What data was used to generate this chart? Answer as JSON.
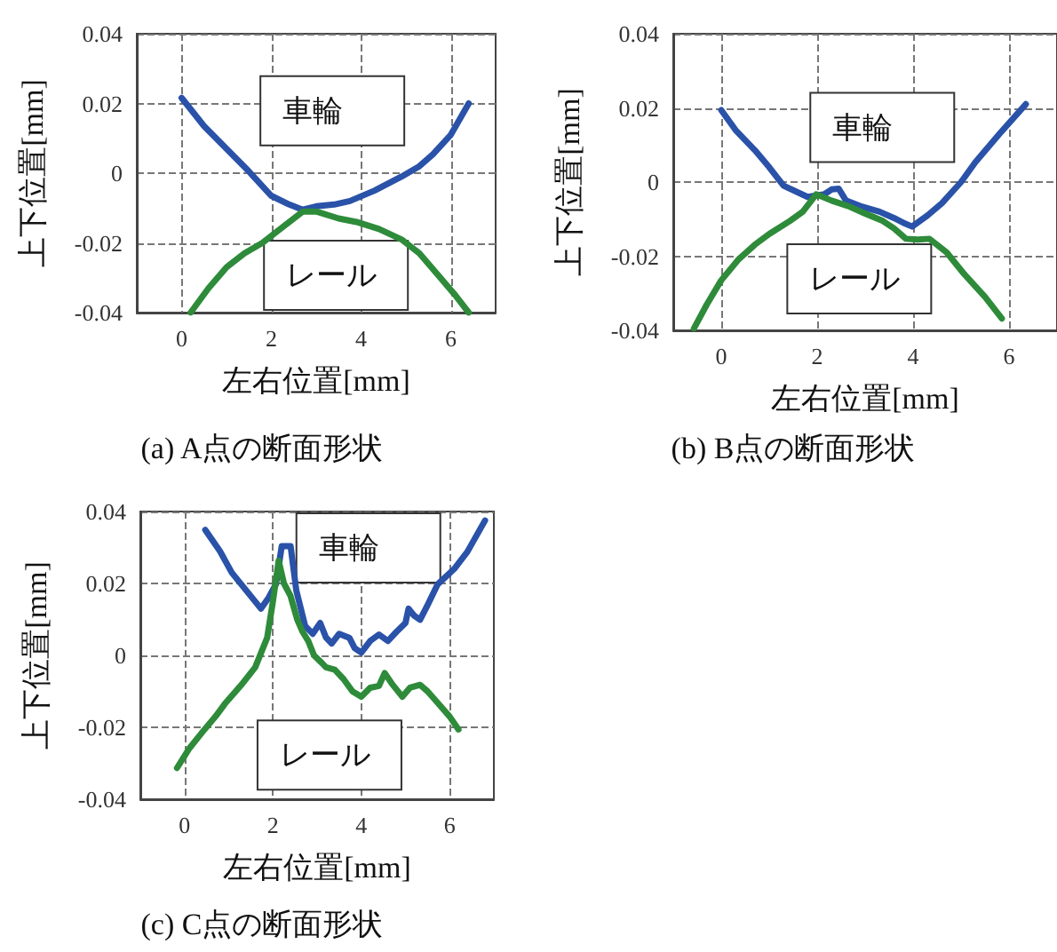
{
  "chart_data": [
    {
      "type": "line",
      "title": "(a) A点の断面形状",
      "xlabel": "左右位置[mm]",
      "ylabel": "上下位置[mm]",
      "xlim": [
        -1,
        7
      ],
      "ylim": [
        -0.04,
        0.04
      ],
      "xticks": [
        0,
        2,
        4,
        6
      ],
      "yticks": [
        -0.04,
        -0.02,
        0,
        0.02,
        0.04
      ],
      "grid": true,
      "marker": "none",
      "line_style": "solid",
      "series": [
        {
          "name": "車輪",
          "color": "#2a52a8",
          "x": [
            0.0,
            0.5,
            1.0,
            1.5,
            2.0,
            2.4,
            2.7,
            3.0,
            3.4,
            3.75,
            4.3,
            4.9,
            5.3,
            5.6,
            6.0,
            6.4
          ],
          "values": [
            0.0216,
            0.0135,
            0.007,
            0.0005,
            -0.0065,
            -0.009,
            -0.0105,
            -0.0095,
            -0.009,
            -0.008,
            -0.005,
            -0.001,
            0.002,
            0.0054,
            0.011,
            0.02
          ]
        },
        {
          "name": "レール",
          "color": "#2e8b3a",
          "x": [
            0.2,
            0.6,
            1.0,
            1.4,
            1.8,
            2.2,
            2.7,
            3.0,
            3.5,
            3.9,
            4.4,
            4.9,
            5.3,
            5.7,
            6.1,
            6.4
          ],
          "values": [
            -0.04,
            -0.033,
            -0.027,
            -0.023,
            -0.02,
            -0.016,
            -0.011,
            -0.011,
            -0.013,
            -0.014,
            -0.016,
            -0.019,
            -0.023,
            -0.029,
            -0.035,
            -0.04
          ]
        }
      ]
    },
    {
      "type": "line",
      "title": "(b) B点の断面形状",
      "xlabel": "左右位置[mm]",
      "ylabel": "上下位置[mm]",
      "xlim": [
        -1,
        7
      ],
      "ylim": [
        -0.04,
        0.04
      ],
      "xticks": [
        0,
        2,
        4,
        6
      ],
      "yticks": [
        -0.04,
        -0.02,
        0,
        0.02,
        0.04
      ],
      "grid": true,
      "marker": "none",
      "line_style": "solid",
      "series": [
        {
          "name": "車輪",
          "color": "#2a52a8",
          "x": [
            0.0,
            0.3,
            0.7,
            1.0,
            1.3,
            1.8,
            2.15,
            2.3,
            2.45,
            2.6,
            2.9,
            3.3,
            3.6,
            3.8,
            3.98,
            4.3,
            4.6,
            5.0,
            5.3,
            5.8,
            6.35
          ],
          "values": [
            0.0194,
            0.014,
            0.0086,
            0.004,
            -0.001,
            -0.004,
            -0.0033,
            -0.002,
            -0.0018,
            -0.005,
            -0.0065,
            -0.008,
            -0.0097,
            -0.011,
            -0.012,
            -0.009,
            -0.0057,
            0.0,
            0.0054,
            0.013,
            0.021
          ]
        },
        {
          "name": "レール",
          "color": "#2e8b3a",
          "x": [
            -0.57,
            -0.3,
            0.0,
            0.35,
            0.7,
            1.0,
            1.43,
            1.7,
            1.98,
            2.3,
            2.65,
            3.0,
            3.37,
            3.6,
            3.85,
            4.1,
            4.34,
            4.7,
            5.07,
            5.5,
            5.85
          ],
          "values": [
            -0.0395,
            -0.033,
            -0.0265,
            -0.021,
            -0.0169,
            -0.014,
            -0.0105,
            -0.008,
            -0.0033,
            -0.005,
            -0.0065,
            -0.0085,
            -0.0105,
            -0.0125,
            -0.0153,
            -0.0155,
            -0.0153,
            -0.019,
            -0.0249,
            -0.031,
            -0.0368
          ]
        }
      ]
    },
    {
      "type": "line",
      "title": "(c) C点の断面形状",
      "xlabel": "左右位置[mm]",
      "ylabel": "上下位置[mm]",
      "xlim": [
        -1,
        7
      ],
      "ylim": [
        -0.04,
        0.04
      ],
      "xticks": [
        0,
        2,
        4,
        6
      ],
      "yticks": [
        -0.04,
        -0.02,
        0,
        0.02,
        0.04
      ],
      "grid": true,
      "marker": "none",
      "line_style": "solid",
      "series": [
        {
          "name": "車輪",
          "color": "#2a52a8",
          "x": [
            0.47,
            0.8,
            1.07,
            1.4,
            1.73,
            1.9,
            2.07,
            2.2,
            2.3,
            2.4,
            2.53,
            2.73,
            2.9,
            3.07,
            3.2,
            3.33,
            3.5,
            3.73,
            3.85,
            4.0,
            4.2,
            4.4,
            4.6,
            4.8,
            5.0,
            5.07,
            5.2,
            5.33,
            5.5,
            5.73,
            6.1,
            6.4,
            6.8
          ],
          "values": [
            0.0349,
            0.029,
            0.023,
            0.018,
            0.013,
            0.016,
            0.0198,
            0.0304,
            0.0304,
            0.0304,
            0.018,
            0.0082,
            0.006,
            0.009,
            0.005,
            0.0033,
            0.006,
            0.0049,
            0.002,
            0.0008,
            0.004,
            0.0058,
            0.004,
            0.0066,
            0.009,
            0.013,
            0.011,
            0.0099,
            0.014,
            0.0198,
            0.024,
            0.0288,
            0.0375
          ]
        },
        {
          "name": "レール",
          "color": "#2e8b3a",
          "x": [
            -0.17,
            0.1,
            0.4,
            0.7,
            0.93,
            1.3,
            1.6,
            1.87,
            2.0,
            2.13,
            2.25,
            2.4,
            2.55,
            2.67,
            2.8,
            2.93,
            3.1,
            3.2,
            3.4,
            3.6,
            3.8,
            4.0,
            4.2,
            4.4,
            4.53,
            4.7,
            4.93,
            5.1,
            5.33,
            5.5,
            5.73,
            6.0,
            6.2
          ],
          "values": [
            -0.0313,
            -0.026,
            -0.0214,
            -0.017,
            -0.0132,
            -0.008,
            -0.0033,
            0.0049,
            0.015,
            0.0263,
            0.02,
            0.0165,
            0.01,
            0.0066,
            0.004,
            0.0,
            -0.002,
            -0.0033,
            -0.004,
            -0.0066,
            -0.01,
            -0.0115,
            -0.009,
            -0.0085,
            -0.0049,
            -0.008,
            -0.0115,
            -0.009,
            -0.0082,
            -0.01,
            -0.0132,
            -0.017,
            -0.0206
          ]
        }
      ]
    }
  ]
}
